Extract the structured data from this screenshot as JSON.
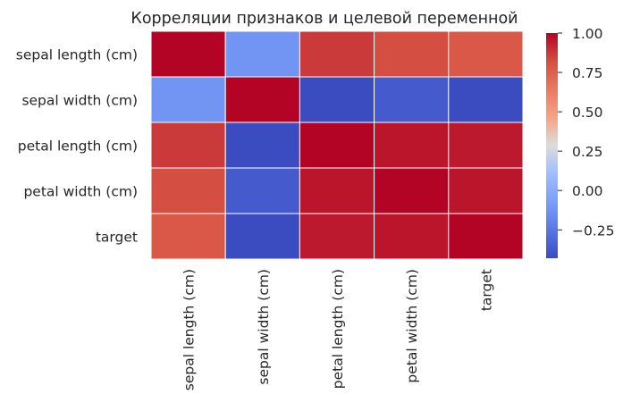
{
  "chart_data": {
    "type": "heatmap",
    "title": "Корреляции признаков и целевой переменной",
    "rows": [
      "sepal length (cm)",
      "sepal width (cm)",
      "petal length (cm)",
      "petal width (cm)",
      "target"
    ],
    "columns": [
      "sepal length (cm)",
      "sepal width (cm)",
      "petal length (cm)",
      "petal width (cm)",
      "target"
    ],
    "values": [
      [
        1.0,
        -0.12,
        0.87,
        0.82,
        0.78
      ],
      [
        -0.12,
        1.0,
        -0.43,
        -0.37,
        -0.43
      ],
      [
        0.87,
        -0.43,
        1.0,
        0.96,
        0.95
      ],
      [
        0.82,
        -0.37,
        0.96,
        1.0,
        0.96
      ],
      [
        0.78,
        -0.43,
        0.95,
        0.96,
        1.0
      ]
    ],
    "colormap": "coolwarm",
    "vmin": -0.43,
    "vmax": 1.0,
    "colorbar_ticks": [
      1.0,
      0.75,
      0.5,
      0.25,
      0.0,
      -0.25
    ],
    "colorbar_tick_labels": [
      "1.00",
      "0.75",
      "0.50",
      "0.25",
      "0.00",
      "−0.25"
    ]
  }
}
